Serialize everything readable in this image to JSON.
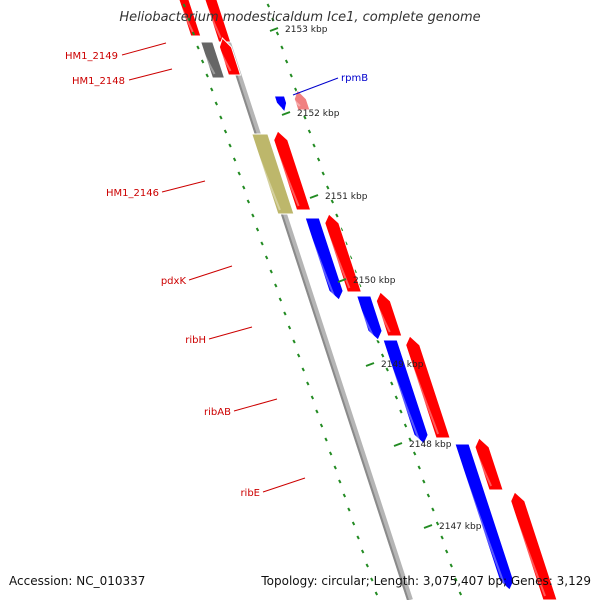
{
  "title": "Heliobacterium modesticaldum Ice1, complete genome",
  "footer": {
    "accession": "Accession: NC_010337",
    "summary": "Topology: circular; Length: 3,075,407 bp; Genes: 3,129"
  },
  "colors": {
    "forward_strand": "#ff0000",
    "reverse_strand_cds": "#0000ff",
    "unlabeled_gene": "#666666",
    "hm1_2146": "#bdb76b",
    "rpmb_reverse": "#0000ff",
    "rpmb_forward": "#f08080",
    "gene_label": "#cc0000",
    "rpmb_label": "#0000cc",
    "tick": "#228b22",
    "backbone": "#999999"
  },
  "ticks": [
    {
      "label": "2153 kbp"
    },
    {
      "label": "2152 kbp"
    },
    {
      "label": "2151 kbp"
    },
    {
      "label": "2150 kbp"
    },
    {
      "label": "2149 kbp"
    },
    {
      "label": "2148 kbp"
    },
    {
      "label": "2147 kbp"
    }
  ],
  "gene_labels": [
    {
      "name": "HM1_2149"
    },
    {
      "name": "HM1_2148"
    },
    {
      "name": "rpmB"
    },
    {
      "name": "HM1_2146"
    },
    {
      "name": "pdxK"
    },
    {
      "name": "ribH"
    },
    {
      "name": "ribAB"
    },
    {
      "name": "ribE"
    }
  ]
}
